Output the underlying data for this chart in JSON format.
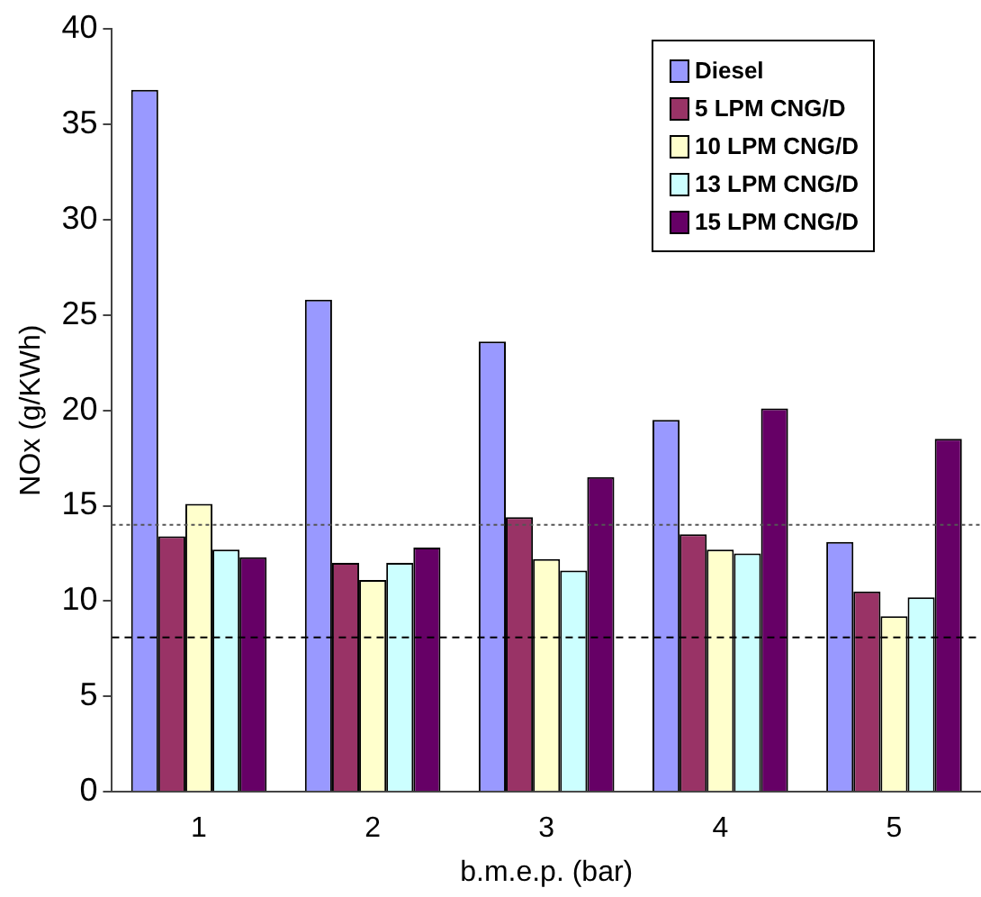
{
  "chart_data": {
    "type": "bar",
    "xlabel": "b.m.e.p. (bar)",
    "ylabel": "NOx (g/KWh)",
    "categories": [
      "1",
      "2",
      "3",
      "4",
      "5"
    ],
    "series": [
      {
        "name": "Diesel",
        "color": "#9999ff",
        "values": [
          36.8,
          25.8,
          23.6,
          19.5,
          13.1
        ]
      },
      {
        "name": "5 LPM CNG/D",
        "color": "#993366",
        "values": [
          13.4,
          12.0,
          14.4,
          13.5,
          10.5
        ]
      },
      {
        "name": "10 LPM CNG/D",
        "color": "#ffffcc",
        "values": [
          15.1,
          11.1,
          12.2,
          12.7,
          9.2
        ]
      },
      {
        "name": "13 LPM CNG/D",
        "color": "#ccffff",
        "values": [
          12.7,
          12.0,
          11.6,
          12.5,
          10.2
        ]
      },
      {
        "name": "15 LPM CNG/D",
        "color": "#660066",
        "values": [
          12.3,
          12.8,
          16.5,
          20.1,
          18.5
        ]
      }
    ],
    "ylim": [
      0,
      40
    ],
    "yticks": [
      0,
      5,
      10,
      15,
      20,
      25,
      30,
      35,
      40
    ],
    "grid": false,
    "legend": "top right",
    "ref_lines": [
      {
        "axis": "y",
        "value": 14.0,
        "line_style": "dotted",
        "color": "#555555"
      },
      {
        "axis": "y",
        "value": 8.1,
        "line_style": "dashed",
        "color": "#000000"
      }
    ]
  }
}
